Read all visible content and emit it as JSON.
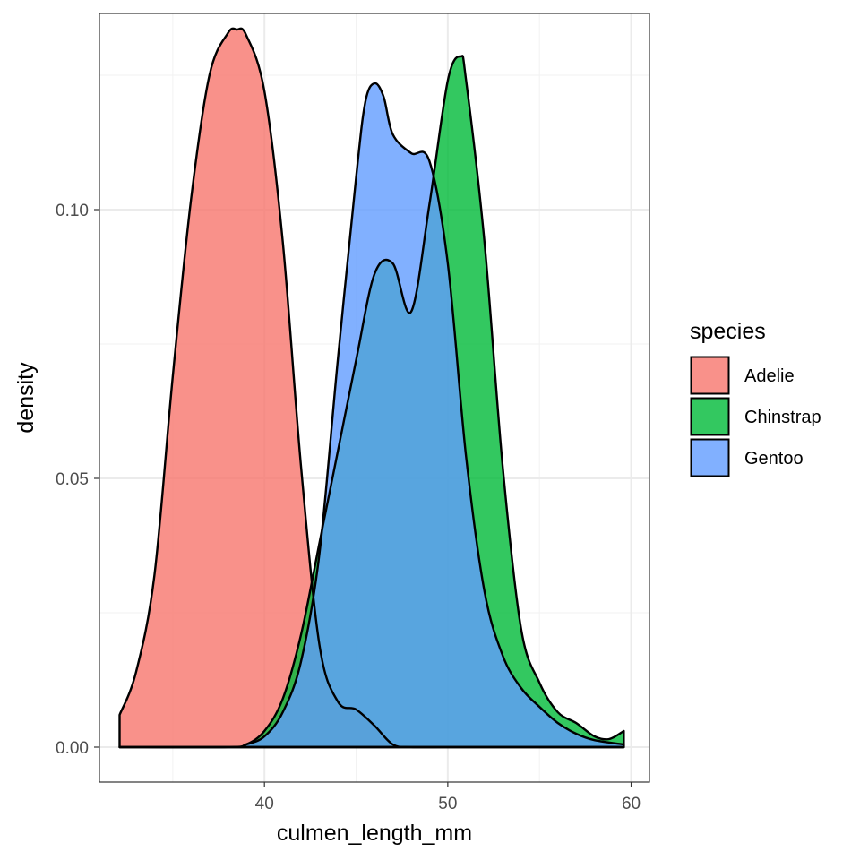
{
  "chart_data": {
    "type": "area",
    "subtype": "density",
    "xlabel": "culmen_length_mm",
    "ylabel": "density",
    "xlim": [
      31.0,
      61.0
    ],
    "ylim": [
      -0.0065,
      0.1365
    ],
    "x_ticks": [
      40,
      50,
      60
    ],
    "x_tick_labels": [
      "40",
      "50",
      "60"
    ],
    "x_minor_ticks": [
      35,
      45,
      55
    ],
    "y_ticks": [
      0.0,
      0.05,
      0.1
    ],
    "y_tick_labels": [
      "0.00",
      "0.05",
      "0.10"
    ],
    "y_minor_ticks": [
      0.025,
      0.075,
      0.125
    ],
    "grid": true,
    "fill_alpha": 0.8,
    "legend": {
      "title": "species",
      "position": "right"
    },
    "series": [
      {
        "name": "Adelie",
        "color": "#F8766D",
        "x": [
          32.1,
          33,
          34,
          35,
          36,
          37,
          38,
          38.5,
          39,
          40,
          41,
          42,
          43,
          44,
          45,
          46,
          47,
          48,
          50,
          55,
          59.6
        ],
        "y": [
          0.006,
          0.014,
          0.032,
          0.069,
          0.102,
          0.125,
          0.1328,
          0.1335,
          0.1325,
          0.122,
          0.094,
          0.052,
          0.019,
          0.0085,
          0.007,
          0.004,
          0.0005,
          0.0,
          0.0,
          0.0,
          0.0
        ]
      },
      {
        "name": "Chinstrap",
        "color": "#00BA38",
        "x": [
          32.1,
          38,
          39,
          40,
          41,
          42,
          43,
          44,
          45,
          46,
          47,
          48,
          49,
          50,
          50.7,
          51,
          52,
          53,
          54,
          55,
          56,
          57,
          58,
          58.8,
          59.6
        ],
        "y": [
          0.0,
          0.0,
          0.0005,
          0.003,
          0.009,
          0.021,
          0.038,
          0.055,
          0.072,
          0.088,
          0.09,
          0.081,
          0.101,
          0.124,
          0.1285,
          0.124,
          0.094,
          0.052,
          0.022,
          0.012,
          0.0065,
          0.0045,
          0.002,
          0.0015,
          0.003
        ]
      },
      {
        "name": "Gentoo",
        "color": "#619CFF",
        "x": [
          32.1,
          38,
          39,
          40,
          41,
          42,
          43,
          44,
          45,
          45.5,
          46,
          46.5,
          47,
          48,
          49,
          50,
          51,
          52,
          53,
          54,
          55,
          56,
          57,
          58,
          59.6
        ],
        "y": [
          0.0,
          0.0,
          0.0005,
          0.002,
          0.0065,
          0.016,
          0.036,
          0.072,
          0.106,
          0.12,
          0.1235,
          0.121,
          0.114,
          0.1105,
          0.109,
          0.09,
          0.054,
          0.029,
          0.017,
          0.011,
          0.0075,
          0.0045,
          0.0025,
          0.0013,
          0.0005
        ]
      }
    ]
  }
}
